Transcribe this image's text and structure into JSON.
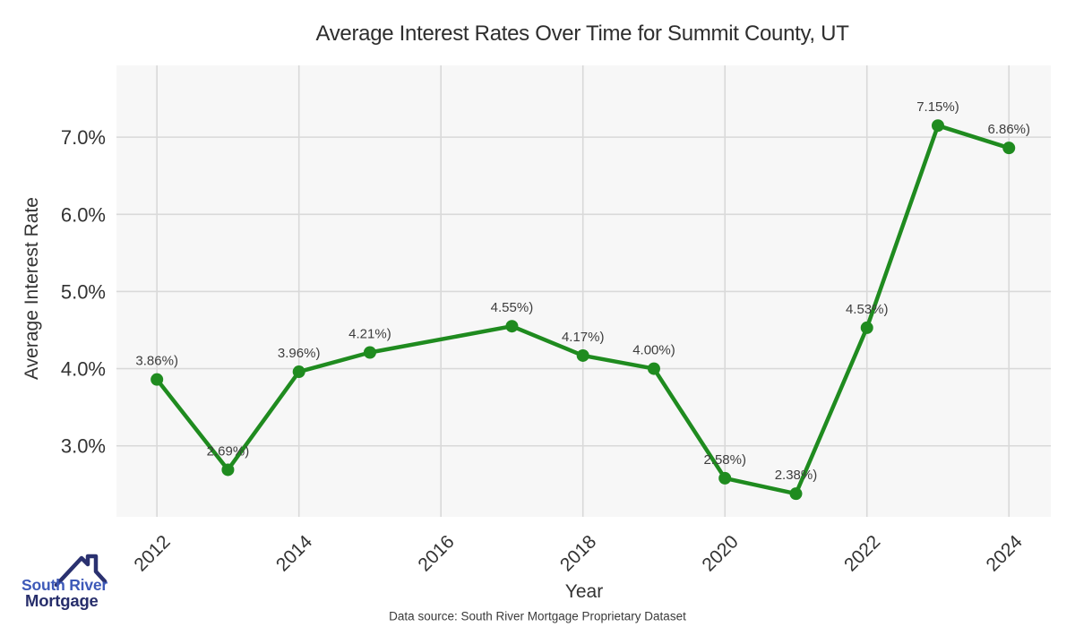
{
  "chart_data": {
    "type": "line",
    "title": "Average Interest Rates Over Time for Summit County, UT",
    "xlabel": "Year",
    "ylabel": "Average Interest Rate",
    "x": [
      2012,
      2013,
      2014,
      2015,
      2017,
      2018,
      2019,
      2020,
      2021,
      2022,
      2023,
      2024
    ],
    "values": [
      3.86,
      2.69,
      3.96,
      4.21,
      4.55,
      4.17,
      4.0,
      2.58,
      2.38,
      4.53,
      7.15,
      6.86
    ],
    "point_labels": [
      "3.86%)",
      "2.69%)",
      "3.96%)",
      "4.21%)",
      "4.55%)",
      "4.17%)",
      "4.00%)",
      "2.58%)",
      "2.38%)",
      "4.53%)",
      "7.15%)",
      "6.86%)"
    ],
    "x_ticks": [
      2012,
      2014,
      2016,
      2018,
      2020,
      2022,
      2024
    ],
    "y_ticks": [
      "3.0%",
      "4.0%",
      "5.0%",
      "6.0%",
      "7.0%"
    ],
    "y_tick_values": [
      3.0,
      4.0,
      5.0,
      6.0,
      7.0
    ],
    "xlim": [
      2011.43,
      2024.59
    ],
    "ylim": [
      2.08,
      7.93
    ],
    "grid": true,
    "legend": "none",
    "line_color": "#1f8b1f",
    "marker_color": "#1f8b1f",
    "panel_bg": "#f7f7f7",
    "grid_color": "#d9d9d9",
    "tick_color": "#333333",
    "point_label_color": "#3d3d3d"
  },
  "footer": {
    "source_text": "Data source: South River Mortgage Proprietary Dataset"
  },
  "logo": {
    "line1": "South River",
    "line2": "Mortgage",
    "line1_color": "#3d59b8",
    "line2_color": "#272e6b",
    "roof_color": "#2a3170"
  }
}
